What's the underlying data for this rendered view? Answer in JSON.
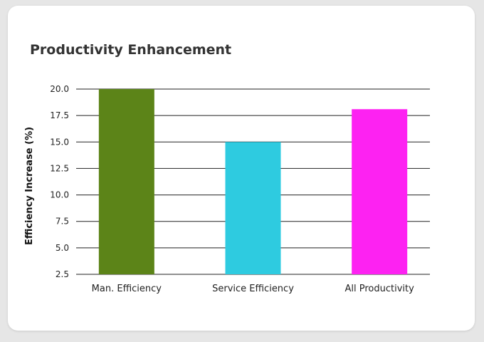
{
  "chart_data": {
    "type": "bar",
    "title": "Productivity Enhancement",
    "xlabel": "",
    "ylabel": "Efficiency Increase (%)",
    "categories": [
      "Man. Efficiency",
      "Service Efficiency",
      "All Productivity"
    ],
    "values": [
      20.0,
      15.0,
      18.1
    ],
    "colors": [
      "#5c8418",
      "#2ecbe0",
      "#fd22f2"
    ],
    "ylim": [
      2.5,
      20.0
    ],
    "yticks": [
      "2.5",
      "5.0",
      "7.5",
      "10.0",
      "12.5",
      "15.0",
      "17.5",
      "20.0"
    ],
    "grid": true,
    "legend": "none"
  }
}
